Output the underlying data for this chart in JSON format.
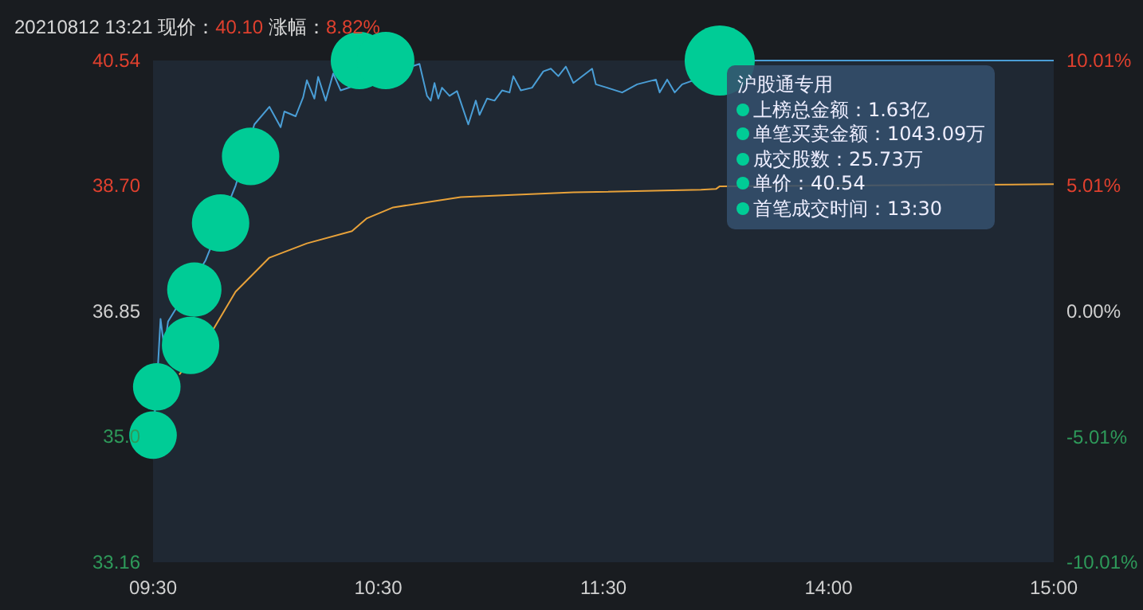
{
  "chart_data": {
    "type": "line",
    "title": "20210812 13:21 现价：40.10 涨幅：8.82%",
    "categories": [
      "09:30",
      null,
      null,
      null,
      null,
      null,
      null,
      null,
      null,
      null,
      null,
      null,
      null,
      null,
      null,
      null,
      null,
      null,
      null,
      null,
      null,
      null,
      null,
      null,
      null,
      null,
      null,
      null,
      null,
      null,
      null,
      null,
      null,
      null,
      null,
      null,
      null,
      null,
      null,
      null,
      null,
      null,
      null,
      null,
      null,
      null,
      null,
      null,
      null,
      null,
      null,
      null,
      null,
      null,
      null,
      null,
      null,
      null,
      null,
      null,
      "10:30",
      null,
      null,
      null,
      null,
      null,
      null,
      null,
      null,
      null,
      null,
      null,
      null,
      null,
      null,
      null,
      null,
      null,
      null,
      null,
      null,
      null,
      null,
      null,
      null,
      null,
      null,
      null,
      null,
      null,
      null,
      null,
      null,
      null,
      null,
      null,
      null,
      null,
      null,
      null,
      null,
      null,
      null,
      null,
      null,
      null,
      null,
      null,
      null,
      null,
      null,
      null,
      null,
      null,
      null,
      null,
      null,
      null,
      null,
      null,
      "11:30",
      null,
      null,
      null,
      null,
      null,
      null,
      null,
      null,
      null,
      null,
      null,
      null,
      null,
      null,
      null,
      null,
      null,
      null,
      null,
      null,
      null,
      null,
      null,
      null,
      null,
      null,
      null,
      null,
      null,
      null,
      null,
      null,
      null,
      null,
      null,
      null,
      null,
      null,
      null,
      null,
      null,
      null,
      null,
      null,
      null,
      null,
      null,
      null,
      null,
      null,
      null,
      null,
      null,
      null,
      null,
      null,
      null,
      null,
      null,
      "14:00",
      null,
      null,
      null,
      null,
      null,
      null,
      null,
      null,
      null,
      null,
      null,
      null,
      null,
      null,
      null,
      null,
      null,
      null,
      null,
      null,
      null,
      null,
      null,
      null,
      null,
      null,
      null,
      null,
      null,
      null,
      null,
      null,
      null,
      null,
      null,
      null,
      null,
      null,
      null,
      null,
      null,
      null,
      null,
      null,
      null,
      null,
      null,
      null,
      null,
      null,
      null,
      null,
      null,
      null,
      null,
      null,
      null,
      null,
      null,
      "15:00"
    ],
    "ylim": [
      33.16,
      40.54
    ],
    "yticks": [
      33.16,
      {
        "value": 35.01,
        "label": "35.0"
      },
      36.85,
      {
        "value": 38.7,
        "label": "38.70"
      },
      40.54
    ],
    "y2lim": [
      -10.01,
      10.01
    ],
    "y2ticks": [
      {
        "value": -10.01,
        "label": "-10.01%"
      },
      {
        "value": -5.01,
        "label": "-5.01%"
      },
      {
        "value": 0,
        "label": "0.00%"
      },
      {
        "value": 5.01,
        "label": "5.01%"
      },
      {
        "value": 10.01,
        "label": "10.01%"
      }
    ],
    "marker": "none",
    "series": [
      {
        "color": "#4a9ed6",
        "values": [
          35.03,
          35.74,
          36.74,
          36.3,
          36.7,
          null,
          null,
          null,
          null,
          null,
          null,
          null,
          null,
          null,
          37.6,
          null,
          null,
          null,
          null,
          null,
          null,
          null,
          38.7,
          null,
          null,
          null,
          null,
          39.6,
          null,
          null,
          null,
          39.86,
          null,
          null,
          39.56,
          39.79,
          null,
          null,
          39.72,
          null,
          40.0,
          40.25,
          null,
          39.98,
          40.3,
          null,
          39.95,
          null,
          40.35,
          null,
          40.1,
          null,
          null,
          null,
          null,
          null,
          null,
          null,
          null,
          null,
          null,
          null,
          null,
          null,
          null,
          null,
          null,
          null,
          null,
          null,
          null,
          40.49,
          null,
          40.02,
          39.95,
          40.21,
          39.98,
          40.14,
          null,
          40.02,
          null,
          40.09,
          null,
          null,
          39.6,
          null,
          39.95,
          39.74,
          null,
          39.98,
          null,
          39.95,
          null,
          40.1,
          null,
          40.07,
          40.31,
          null,
          40.1,
          null,
          null,
          40.14,
          null,
          null,
          40.38,
          null,
          40.42,
          null,
          40.31,
          null,
          40.45,
          null,
          40.21,
          null,
          null,
          null,
          null,
          40.42,
          40.19,
          null,
          null,
          40.14,
          null,
          null,
          null,
          40.07,
          null,
          null,
          null,
          40.19,
          null,
          null,
          null,
          null,
          40.26,
          40.07,
          null,
          40.26,
          null,
          40.07,
          null,
          40.19,
          null,
          null,
          null,
          null,
          null,
          null,
          null,
          null,
          null,
          null,
          null,
          null,
          null,
          null,
          null,
          null,
          null,
          40.54,
          40.54,
          40.54,
          40.54,
          40.54,
          40.54,
          40.54,
          40.54,
          40.54,
          40.54,
          40.54,
          40.54,
          40.54,
          40.54,
          40.54,
          40.54,
          40.54,
          40.54,
          40.54,
          40.54,
          40.54,
          40.54,
          40.54,
          40.54,
          40.54,
          40.54,
          40.54,
          40.54,
          40.54,
          40.54,
          40.54,
          40.54,
          40.54,
          40.54,
          40.54,
          40.54,
          40.54,
          40.54,
          40.54,
          40.54,
          40.54,
          40.54,
          40.54,
          40.54,
          40.54,
          40.54,
          40.54,
          40.54,
          40.54,
          40.54,
          40.54,
          40.54,
          40.54,
          40.54,
          40.54,
          40.54,
          40.54,
          40.54,
          40.54,
          40.54,
          40.54,
          40.54,
          40.54,
          40.54,
          40.54,
          40.54,
          40.54,
          40.54,
          40.54,
          40.54,
          40.54,
          40.54,
          40.54,
          40.54,
          40.54,
          40.54,
          40.54,
          40.54,
          40.54,
          40.54,
          40.54,
          40.54
        ]
      },
      {
        "color": "#e8a23a",
        "values": [
          null,
          null,
          null,
          null,
          null,
          null,
          null,
          35.92,
          null,
          null,
          null,
          null,
          null,
          null,
          null,
          null,
          36.58,
          null,
          null,
          null,
          null,
          null,
          37.14,
          null,
          null,
          null,
          null,
          null,
          null,
          null,
          null,
          37.64,
          null,
          null,
          null,
          null,
          null,
          null,
          null,
          null,
          null,
          37.85,
          null,
          null,
          null,
          null,
          null,
          null,
          null,
          null,
          null,
          null,
          null,
          38.03,
          null,
          null,
          null,
          38.22,
          null,
          null,
          null,
          null,
          null,
          null,
          38.38,
          null,
          null,
          null,
          null,
          null,
          null,
          null,
          null,
          null,
          null,
          null,
          null,
          null,
          null,
          null,
          null,
          null,
          38.53,
          null,
          null,
          null,
          null,
          null,
          null,
          null,
          null,
          null,
          null,
          null,
          null,
          null,
          null,
          null,
          null,
          null,
          null,
          null,
          null,
          null,
          null,
          null,
          null,
          null,
          null,
          null,
          null,
          null,
          38.6,
          null,
          null,
          null,
          null,
          null,
          null,
          null,
          null,
          null,
          null,
          null,
          null,
          null,
          null,
          null,
          null,
          null,
          null,
          null,
          null,
          null,
          null,
          null,
          null,
          null,
          null,
          null,
          null,
          null,
          null,
          null,
          null,
          null,
          38.64,
          null,
          null,
          null,
          38.65,
          38.69,
          null,
          null,
          null,
          null,
          null,
          null,
          null,
          null,
          null,
          null,
          null,
          null,
          null,
          null,
          null,
          null,
          null,
          null,
          null,
          null,
          null,
          null,
          null,
          null,
          null,
          null,
          null,
          null,
          null,
          null,
          null,
          null,
          null,
          null,
          null,
          null,
          null,
          null,
          null,
          null,
          null,
          null,
          null,
          null,
          null,
          null,
          null,
          null,
          null,
          null,
          null,
          null,
          null,
          null,
          null,
          null,
          null,
          null,
          null,
          null,
          null,
          null,
          null,
          null,
          null,
          null,
          null,
          null,
          null,
          null,
          null,
          null,
          null,
          null,
          null,
          null,
          null,
          null,
          null,
          null,
          null,
          null,
          null,
          null,
          null,
          null,
          null,
          null,
          38.72
        ]
      },
      {
        "type": "bubble",
        "marker": "circle",
        "color": "#00cc96",
        "values": [
          35.03,
          35.74,
          null,
          null,
          null,
          null,
          null,
          null,
          null,
          null,
          36.35,
          37.17,
          null,
          null,
          null,
          null,
          null,
          null,
          38.15,
          null,
          null,
          null,
          null,
          null,
          null,
          null,
          39.13,
          null,
          null,
          null,
          null,
          null,
          null,
          null,
          null,
          null,
          null,
          null,
          null,
          null,
          null,
          null,
          null,
          null,
          null,
          null,
          null,
          null,
          null,
          null,
          null,
          null,
          null,
          null,
          null,
          40.54,
          null,
          null,
          null,
          null,
          null,
          null,
          40.54,
          null,
          null,
          null,
          null,
          null,
          null,
          null,
          null,
          null,
          null,
          null,
          null,
          null,
          null,
          null,
          null,
          null,
          null,
          null,
          null,
          null,
          null,
          null,
          null,
          null,
          null,
          null,
          null,
          null,
          null,
          null,
          null,
          null,
          null,
          null,
          null,
          null,
          null,
          null,
          null,
          null,
          null,
          null,
          null,
          null,
          null,
          null,
          null,
          null,
          null,
          null,
          null,
          null,
          null,
          null,
          null,
          null,
          null,
          null,
          null,
          null,
          null,
          null,
          null,
          null,
          null,
          null,
          null,
          null,
          null,
          null,
          null,
          null,
          null,
          null,
          null,
          null,
          null,
          null,
          null,
          null,
          null,
          null,
          null,
          null,
          null,
          null,
          null,
          40.54,
          null,
          null,
          null,
          null,
          null,
          null,
          null,
          null,
          null,
          null,
          null,
          null,
          null,
          null,
          null,
          null,
          null,
          null,
          null,
          null,
          null,
          null,
          null,
          null,
          null,
          null,
          null,
          null,
          null,
          null,
          null,
          null,
          null,
          null,
          null,
          null,
          null,
          null,
          null,
          null,
          null,
          null,
          null,
          null,
          null,
          null,
          null,
          null,
          null,
          null,
          null,
          null,
          null,
          null,
          null,
          null,
          null,
          null,
          null,
          null,
          null,
          null,
          null,
          null,
          null,
          null,
          null,
          null,
          null,
          null,
          null,
          null,
          null,
          null,
          null,
          null,
          null,
          null,
          null,
          null,
          null,
          null,
          null,
          null,
          null,
          null,
          null,
          null,
          null
        ],
        "sizes": [
          0.46,
          0.46,
          null,
          null,
          null,
          null,
          null,
          null,
          null,
          null,
          0.67,
          0.6,
          null,
          null,
          null,
          null,
          null,
          null,
          0.67,
          null,
          null,
          null,
          null,
          null,
          null,
          null,
          0.67,
          null,
          null,
          null,
          null,
          null,
          null,
          null,
          null,
          null,
          null,
          null,
          null,
          null,
          null,
          null,
          null,
          null,
          null,
          null,
          null,
          null,
          null,
          null,
          null,
          null,
          null,
          null,
          null,
          0.67,
          null,
          null,
          null,
          null,
          null,
          null,
          0.67,
          null,
          null,
          null,
          null,
          null,
          null,
          null,
          null,
          null,
          null,
          null,
          null,
          null,
          null,
          null,
          null,
          null,
          null,
          null,
          null,
          null,
          null,
          null,
          null,
          null,
          null,
          null,
          null,
          null,
          null,
          null,
          null,
          null,
          null,
          null,
          null,
          null,
          null,
          null,
          null,
          null,
          null,
          null,
          null,
          null,
          null,
          null,
          null,
          null,
          null,
          null,
          null,
          null,
          null,
          null,
          null,
          null,
          null,
          null,
          null,
          null,
          null,
          null,
          null,
          null,
          null,
          null,
          null,
          null,
          null,
          null,
          null,
          null,
          null,
          null,
          null,
          null,
          null,
          null,
          null,
          null,
          null,
          null,
          null,
          null,
          null,
          null,
          null,
          1,
          null,
          null,
          null,
          null,
          null,
          null,
          null,
          null,
          null,
          null,
          null,
          null,
          null,
          null,
          null,
          null,
          null,
          null,
          null,
          null,
          null,
          null,
          null,
          null,
          null,
          null,
          null,
          null,
          null,
          null,
          null,
          null,
          null,
          null,
          null,
          null,
          null,
          null,
          null,
          null,
          null,
          null,
          null,
          null,
          null,
          null,
          null,
          null,
          null,
          null,
          null,
          null,
          null,
          null,
          null,
          null,
          null,
          null,
          null,
          null,
          null,
          null,
          null,
          null,
          null,
          null,
          null,
          null,
          null,
          null,
          null,
          null,
          null,
          null,
          null,
          null,
          null,
          null,
          null,
          null,
          null,
          null,
          null,
          null,
          null,
          null,
          null,
          null,
          null
        ]
      }
    ],
    "annotations": [
      "沪股通专用",
      "上榜总金额：1.63亿",
      "单笔买卖金额：1043.09万",
      "成交股数：25.73万",
      "单价：40.54",
      "首笔成交时间：13:30"
    ]
  }
}
